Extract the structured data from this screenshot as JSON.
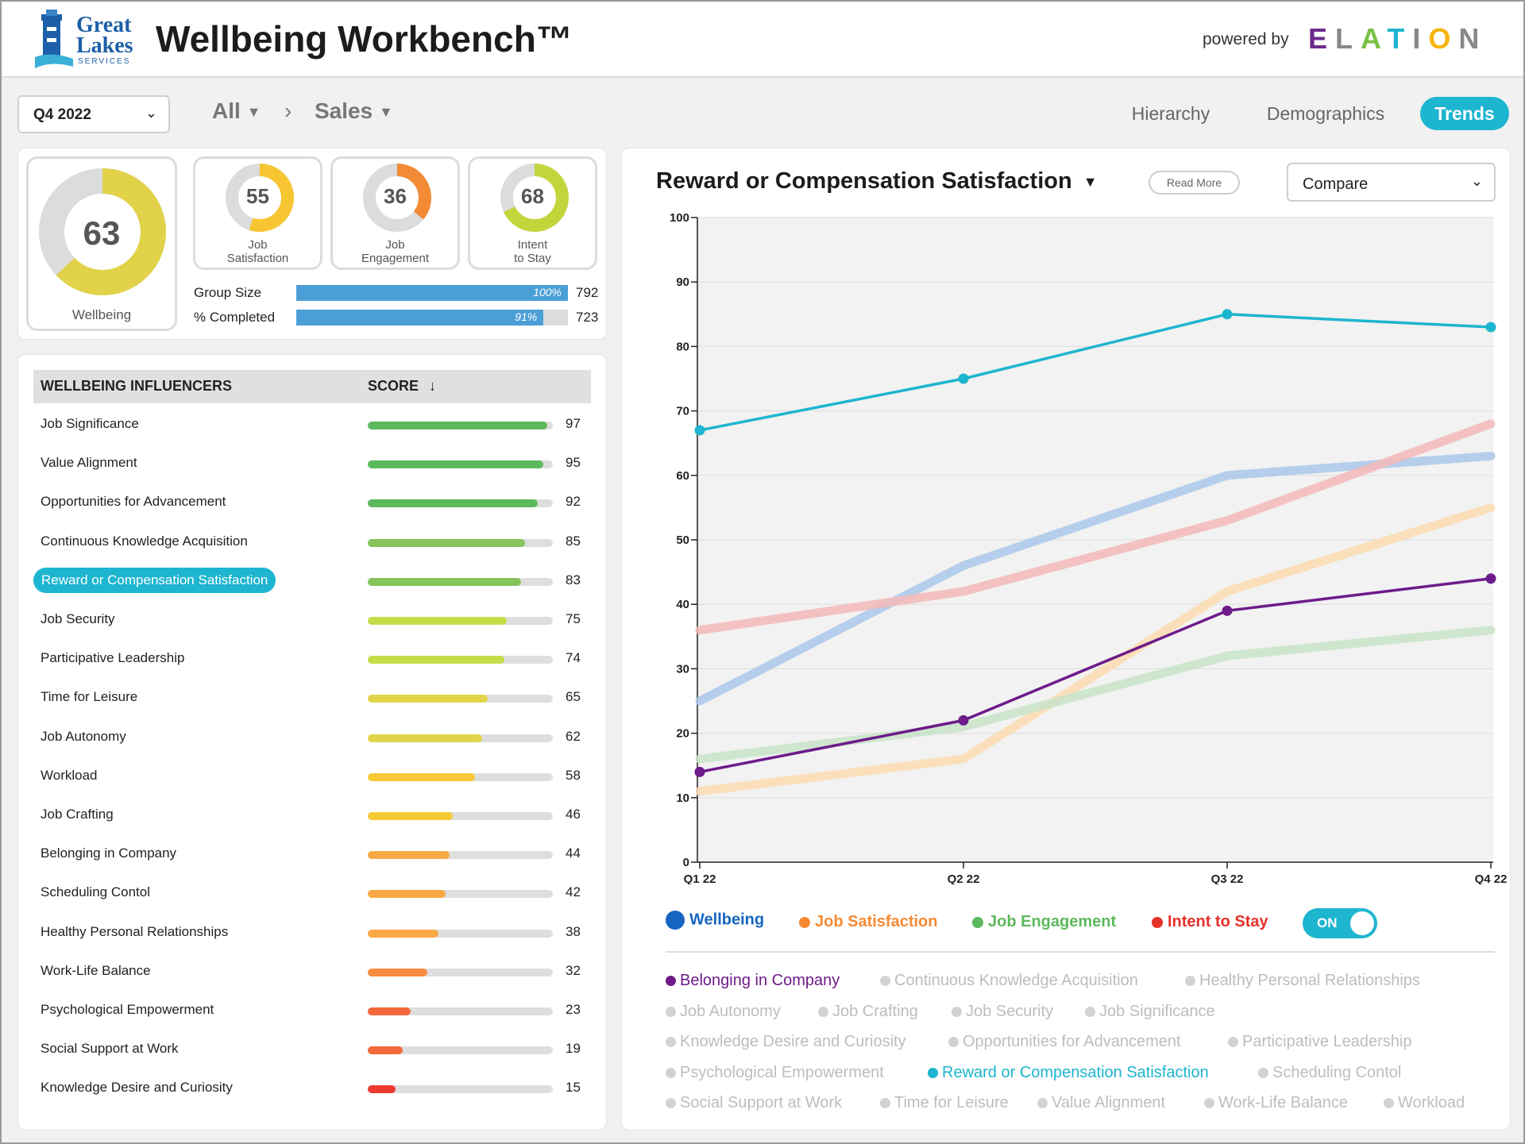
{
  "header": {
    "logo_line1": "Great",
    "logo_line2": "Lakes",
    "logo_line3": "SERVICES",
    "title": "Wellbeing Workbench™",
    "powered_by": "powered by",
    "brand": "ELATION"
  },
  "filters": {
    "quarter": "Q4 2022",
    "crumb_all": "All",
    "crumb_sales": "Sales"
  },
  "tabs": [
    "Hierarchy",
    "Demographics",
    "Trends"
  ],
  "active_tab": "Trends",
  "summary": {
    "wellbeing": {
      "label": "Wellbeing",
      "value": "63",
      "fraction": 0.63,
      "color": "#e1d24a"
    },
    "cards": [
      {
        "label1": "Job",
        "label2": "Satisfaction",
        "value": "55",
        "fraction": 0.55,
        "color": "#f7c531"
      },
      {
        "label1": "Job",
        "label2": "Engagement",
        "value": "36",
        "fraction": 0.36,
        "color": "#f38a35"
      },
      {
        "label1": "Intent",
        "label2": "to Stay",
        "value": "68",
        "fraction": 0.68,
        "color": "#c2d63c"
      }
    ],
    "group_size": {
      "label": "Group Size",
      "pct": "100%",
      "fraction": 1.0,
      "count": "792"
    },
    "completed": {
      "label": "% Completed",
      "pct": "91%",
      "fraction": 0.91,
      "count": "723"
    }
  },
  "influencers": {
    "col_name": "WELLBEING INFLUENCERS",
    "col_score": "SCORE",
    "rows": [
      {
        "name": "Job Significance",
        "score": "97",
        "color": "#5cb85c"
      },
      {
        "name": "Value Alignment",
        "score": "95",
        "color": "#5cb85c"
      },
      {
        "name": "Opportunities for Advancement",
        "score": "92",
        "color": "#5cb85c"
      },
      {
        "name": "Continuous Knowledge Acquisition",
        "score": "85",
        "color": "#84c45a"
      },
      {
        "name": "Reward or Compensation Satisfaction",
        "score": "83",
        "color": "#84c45a"
      },
      {
        "name": "Job Security",
        "score": "75",
        "color": "#c5dc48"
      },
      {
        "name": "Participative Leadership",
        "score": "74",
        "color": "#c5dc48"
      },
      {
        "name": "Time for Leisure",
        "score": "65",
        "color": "#e2d44a"
      },
      {
        "name": "Job Autonomy",
        "score": "62",
        "color": "#e2d44a"
      },
      {
        "name": "Workload",
        "score": "58",
        "color": "#f7c935"
      },
      {
        "name": "Job Crafting",
        "score": "46",
        "color": "#f7c935"
      },
      {
        "name": "Belonging in Company",
        "score": "44",
        "color": "#f9a944"
      },
      {
        "name": "Scheduling Contol",
        "score": "42",
        "color": "#f9a944"
      },
      {
        "name": "Healthy Personal Relationships",
        "score": "38",
        "color": "#f9a944"
      },
      {
        "name": "Work-Life Balance",
        "score": "32",
        "color": "#f98c40"
      },
      {
        "name": "Psychological Empowerment",
        "score": "23",
        "color": "#f26a3b"
      },
      {
        "name": "Social Support at Work",
        "score": "19",
        "color": "#f26a3b"
      },
      {
        "name": "Knowledge Desire and Curiosity",
        "score": "15",
        "color": "#ee3b32"
      }
    ]
  },
  "chart_header": {
    "title": "Reward or Compensation Satisfaction",
    "read_more": "Read More",
    "compare": "Compare"
  },
  "chart_data": {
    "type": "line",
    "title": "Reward or Compensation Satisfaction",
    "x": [
      "Q1 22",
      "Q2 22",
      "Q3 22",
      "Q4 22"
    ],
    "ylim": [
      0,
      100
    ],
    "yticks": [
      0,
      10,
      20,
      30,
      40,
      50,
      60,
      70,
      80,
      90,
      100
    ],
    "series": [
      {
        "name": "Wellbeing",
        "values": [
          25,
          46,
          60,
          63
        ],
        "color": "#aac8ea",
        "faded": true
      },
      {
        "name": "Job Satisfaction",
        "values": [
          11,
          16,
          42,
          55
        ],
        "color": "#fbdcb0",
        "faded": true
      },
      {
        "name": "Job Engagement",
        "values": [
          16,
          21,
          32,
          36
        ],
        "color": "#c8e4c8",
        "faded": true
      },
      {
        "name": "Intent to Stay",
        "values": [
          36,
          42,
          53,
          68
        ],
        "color": "#f4b8b8",
        "faded": true
      },
      {
        "name": "Belonging in Company",
        "values": [
          14,
          22,
          39,
          44
        ],
        "color": "#6d1b8a",
        "faded": false
      },
      {
        "name": "Reward or Compensation Satisfaction",
        "values": [
          67,
          75,
          85,
          83
        ],
        "color": "#1db5cf",
        "faded": false
      }
    ]
  },
  "legend": [
    {
      "label": "Wellbeing",
      "color": "#1565c0"
    },
    {
      "label": "Job Satisfaction",
      "color": "#f58a33"
    },
    {
      "label": "Job Engagement",
      "color": "#5cb85c"
    },
    {
      "label": "Intent to Stay",
      "color": "#e5312b"
    }
  ],
  "toggle_label": "ON",
  "chips": [
    [
      "Belonging in Company",
      "Continuous Knowledge Acquisition",
      "Healthy Personal Relationships"
    ],
    [
      "Job Autonomy",
      "Job Crafting",
      "Job Security",
      "Job Significance"
    ],
    [
      "Knowledge Desire and Curiosity",
      "Opportunities for Advancement",
      "Participative Leadership"
    ],
    [
      "Psychological Empowerment",
      "Reward or Compensation Satisfaction",
      "Scheduling Contol"
    ],
    [
      "Social Support at Work",
      "Time for Leisure",
      "Value Alignment",
      "Work-Life Balance",
      "Workload"
    ]
  ]
}
